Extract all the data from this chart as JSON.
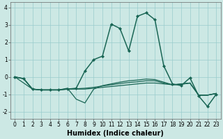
{
  "xlabel": "Humidex (Indice chaleur)",
  "ylabel": "",
  "xlim": [
    -0.5,
    23.5
  ],
  "ylim": [
    -2.4,
    4.3
  ],
  "bg_color": "#cce8e4",
  "grid_color": "#99cccc",
  "line_color": "#1a6655",
  "lines": [
    {
      "x": [
        0,
        1,
        2,
        3,
        4,
        5,
        6,
        7,
        8,
        9,
        10,
        11,
        12,
        13,
        14,
        15,
        16,
        17,
        18,
        19,
        20,
        21,
        22,
        23
      ],
      "y": [
        0.0,
        -0.1,
        -0.7,
        -0.75,
        -0.75,
        -0.75,
        -0.7,
        -0.65,
        0.35,
        1.0,
        1.2,
        3.05,
        2.8,
        1.5,
        3.5,
        3.7,
        3.3,
        0.65,
        -0.4,
        -0.5,
        -0.05,
        -1.1,
        -1.7,
        -1.0
      ],
      "marker": "D",
      "markersize": 2.0,
      "linewidth": 1.1
    },
    {
      "x": [
        0,
        1,
        2,
        3,
        4,
        5,
        6,
        7,
        8,
        9,
        10,
        11,
        12,
        13,
        14,
        15,
        16,
        17,
        18,
        19,
        20,
        21,
        22,
        23
      ],
      "y": [
        0.0,
        -0.1,
        -0.7,
        -0.75,
        -0.75,
        -0.75,
        -0.7,
        -0.7,
        -0.7,
        -0.65,
        -0.6,
        -0.55,
        -0.5,
        -0.45,
        -0.4,
        -0.35,
        -0.35,
        -0.4,
        -0.45,
        -0.4,
        -0.35,
        -1.05,
        -1.05,
        -0.95
      ],
      "marker": null,
      "markersize": 0,
      "linewidth": 0.9
    },
    {
      "x": [
        0,
        1,
        2,
        3,
        4,
        5,
        6,
        7,
        8,
        9,
        10,
        11,
        12,
        13,
        14,
        15,
        16,
        17,
        18,
        19,
        20,
        21,
        22,
        23
      ],
      "y": [
        0.0,
        -0.1,
        -0.7,
        -0.75,
        -0.75,
        -0.75,
        -0.68,
        -0.68,
        -0.65,
        -0.6,
        -0.52,
        -0.45,
        -0.38,
        -0.32,
        -0.28,
        -0.22,
        -0.22,
        -0.35,
        -0.45,
        -0.42,
        -0.35,
        -1.05,
        -1.05,
        -0.95
      ],
      "marker": null,
      "markersize": 0,
      "linewidth": 0.9
    },
    {
      "x": [
        0,
        2,
        3,
        4,
        5,
        6,
        7,
        8,
        9,
        10,
        11,
        12,
        13,
        14,
        15,
        16,
        17,
        18,
        19,
        20,
        21,
        22,
        23
      ],
      "y": [
        0.0,
        -0.7,
        -0.75,
        -0.75,
        -0.75,
        -0.65,
        -1.28,
        -1.5,
        -0.7,
        -0.5,
        -0.4,
        -0.3,
        -0.22,
        -0.18,
        -0.12,
        -0.15,
        -0.3,
        -0.45,
        -0.42,
        -0.35,
        -1.05,
        -1.05,
        -0.95
      ],
      "marker": null,
      "markersize": 0,
      "linewidth": 0.9
    }
  ],
  "xticks": [
    0,
    1,
    2,
    3,
    4,
    5,
    6,
    7,
    8,
    9,
    10,
    11,
    12,
    13,
    14,
    15,
    16,
    17,
    18,
    19,
    20,
    21,
    22,
    23
  ],
  "yticks": [
    -2,
    -1,
    0,
    1,
    2,
    3,
    4
  ],
  "tick_fontsize": 5.5,
  "label_fontsize": 7.0
}
